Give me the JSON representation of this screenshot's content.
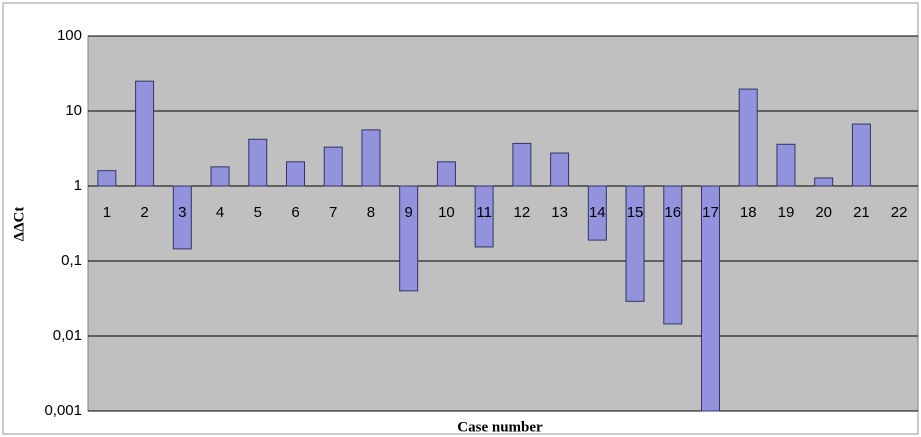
{
  "chart_data": {
    "type": "bar",
    "y_axis_label": "ΔΔCt",
    "x_axis_label": "Case number",
    "categories": [
      "1",
      "2",
      "3",
      "4",
      "5",
      "6",
      "7",
      "8",
      "9",
      "10",
      "11",
      "12",
      "13",
      "14",
      "15",
      "16",
      "17",
      "18",
      "19",
      "20",
      "21",
      "22"
    ],
    "values": [
      1.6,
      25,
      0.145,
      1.8,
      4.2,
      2.1,
      3.3,
      5.6,
      0.04,
      2.1,
      0.154,
      3.7,
      2.75,
      0.19,
      0.029,
      0.0145,
      0.001,
      19.6,
      3.6,
      1.28,
      6.7,
      null
    ],
    "color": "#9393dd",
    "log_scale": true,
    "bar_base": 1,
    "ylim": [
      0.001,
      100
    ],
    "yticks": [
      {
        "value": 0.001,
        "label": "0,001"
      },
      {
        "value": 0.01,
        "label": "0,01"
      },
      {
        "value": 0.1,
        "label": "0,1"
      },
      1,
      10,
      100
    ],
    "grid": true
  }
}
